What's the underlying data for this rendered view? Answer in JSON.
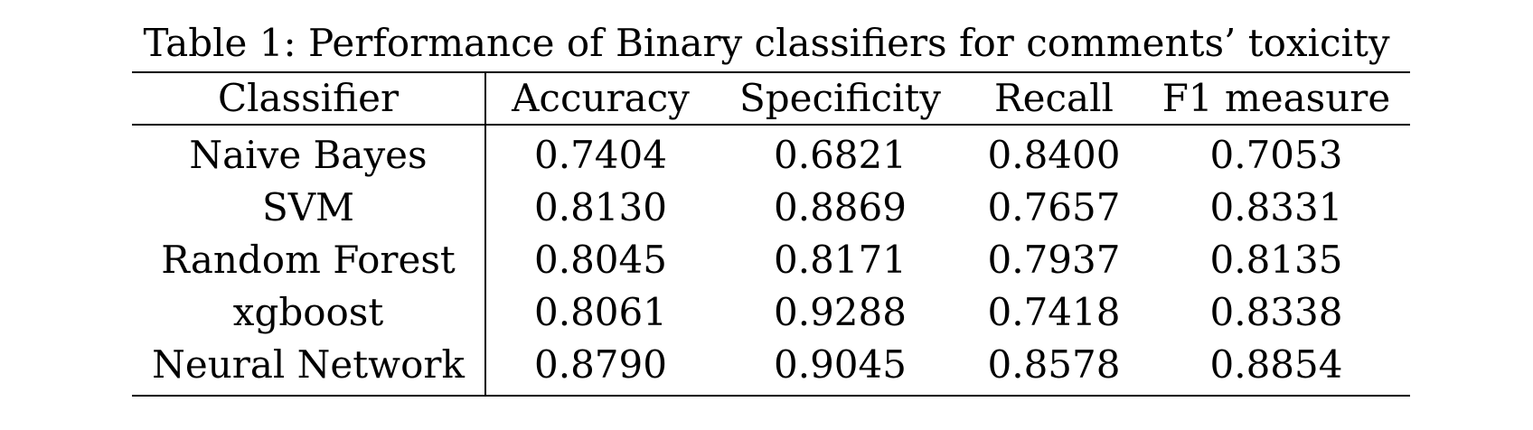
{
  "caption": "Table 1: Performance of Binary classifiers for comments’ toxicity",
  "chart_data": {
    "type": "table",
    "title": "Table 1: Performance of Binary classifiers for comments’ toxicity",
    "columns": [
      "Classifier",
      "Accuracy",
      "Specificity",
      "Recall",
      "F1 measure"
    ],
    "rows": [
      [
        "Naive Bayes",
        "0.7404",
        "0.6821",
        "0.8400",
        "0.7053"
      ],
      [
        "SVM",
        "0.8130",
        "0.8869",
        "0.7657",
        "0.8331"
      ],
      [
        "Random Forest",
        "0.8045",
        "0.8171",
        "0.7937",
        "0.8135"
      ],
      [
        "xgboost",
        "0.8061",
        "0.9288",
        "0.7418",
        "0.8338"
      ],
      [
        "Neural Network",
        "0.8790",
        "0.9045",
        "0.8578",
        "0.8854"
      ]
    ]
  }
}
